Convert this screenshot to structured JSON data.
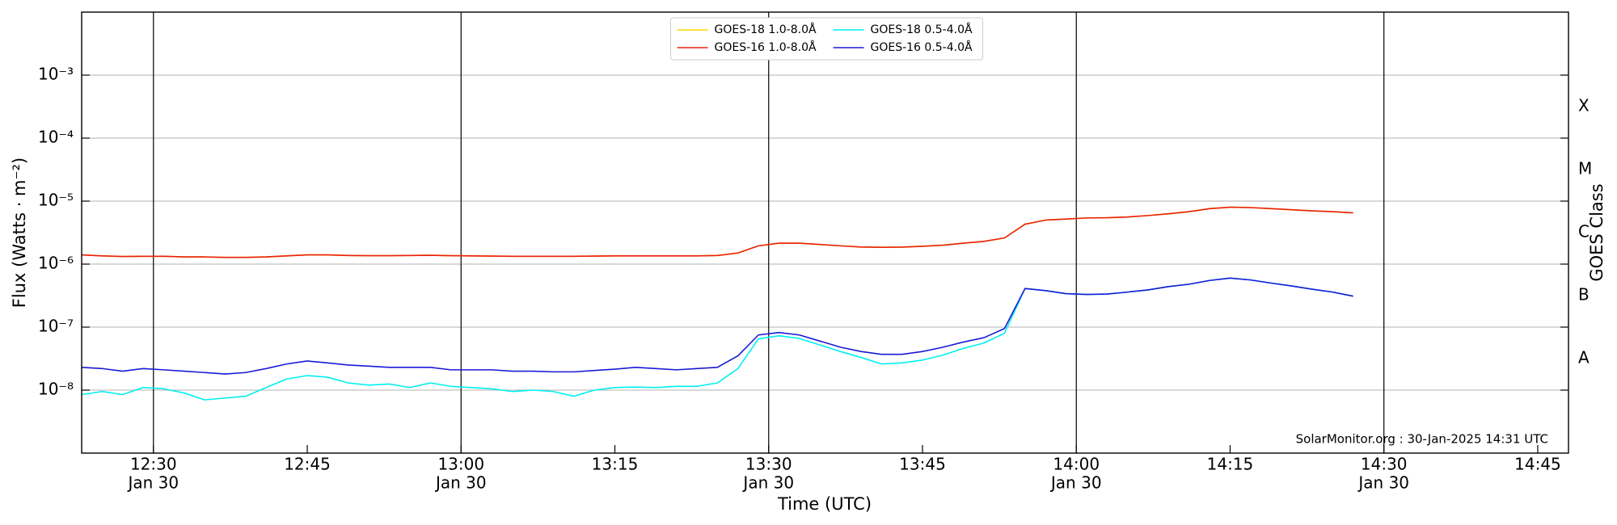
{
  "chart_data": {
    "type": "line",
    "y_scale": "log",
    "xlabel": "Time (UTC)",
    "ylabel": "Flux (Watts · m⁻²)",
    "y2label": "GOES Class",
    "annotation": "SolarMonitor.org : 30-Jan-2025 14:31 UTC",
    "legend": "upper center",
    "grid": true,
    "xlim": [
      "12:23",
      "14:48"
    ],
    "xticks": [
      {
        "value": "12:30",
        "label": [
          "12:30",
          "Jan 30"
        ]
      },
      "12:45",
      {
        "value": "13:00",
        "label": [
          "13:00",
          "Jan 30"
        ]
      },
      "13:15",
      {
        "value": "13:30",
        "label": [
          "13:30",
          "Jan 30"
        ]
      },
      "13:45",
      {
        "value": "14:00",
        "label": [
          "14:00",
          "Jan 30"
        ]
      },
      "14:15",
      {
        "value": "14:30",
        "label": [
          "14:30",
          "Jan 30"
        ]
      },
      "14:45"
    ],
    "ylim": [
      1e-09,
      0.01
    ],
    "yticks": [
      {
        "value": 1e-08,
        "label": "10⁻⁸"
      },
      {
        "value": 1e-07,
        "label": "10⁻⁷"
      },
      {
        "value": 1e-06,
        "label": "10⁻⁶"
      },
      {
        "value": 1e-05,
        "label": "10⁻⁵"
      },
      {
        "value": 0.0001,
        "label": "10⁻⁴"
      },
      {
        "value": 0.001,
        "label": "10⁻³"
      }
    ],
    "y2lim": [
      1e-09,
      0.01
    ],
    "y2ticks": [
      {
        "value": 3.16e-08,
        "label": "A"
      },
      {
        "value": 3.16e-07,
        "label": "B"
      },
      {
        "value": 3.16e-06,
        "label": "C"
      },
      {
        "value": 3.16e-05,
        "label": "M"
      },
      {
        "value": 0.000316,
        "label": "X"
      }
    ],
    "x": [
      "12:23",
      "12:25",
      "12:27",
      "12:29",
      "12:31",
      "12:33",
      "12:35",
      "12:37",
      "12:39",
      "12:41",
      "12:43",
      "12:45",
      "12:47",
      "12:49",
      "12:51",
      "12:53",
      "12:55",
      "12:57",
      "12:59",
      "13:01",
      "13:03",
      "13:05",
      "13:07",
      "13:09",
      "13:11",
      "13:13",
      "13:15",
      "13:17",
      "13:19",
      "13:21",
      "13:23",
      "13:25",
      "13:27",
      "13:29",
      "13:31",
      "13:33",
      "13:35",
      "13:37",
      "13:39",
      "13:41",
      "13:43",
      "13:45",
      "13:47",
      "13:49",
      "13:51",
      "13:53",
      "13:55",
      "13:57",
      "13:59",
      "14:01",
      "14:03",
      "14:05",
      "14:07",
      "14:09",
      "14:11",
      "14:13",
      "14:15",
      "14:17",
      "14:19",
      "14:21",
      "14:23",
      "14:25",
      "14:27"
    ],
    "series": [
      {
        "name": "GOES-18 1.0-8.0Å",
        "color": "#ffd700",
        "values": [
          1.4e-06,
          1.35e-06,
          1.32e-06,
          1.33e-06,
          1.33e-06,
          1.3e-06,
          1.3e-06,
          1.28e-06,
          1.28e-06,
          1.3e-06,
          1.35e-06,
          1.4e-06,
          1.4e-06,
          1.37e-06,
          1.36e-06,
          1.36e-06,
          1.37e-06,
          1.38e-06,
          1.36e-06,
          1.35e-06,
          1.34e-06,
          1.33e-06,
          1.33e-06,
          1.33e-06,
          1.33e-06,
          1.34e-06,
          1.35e-06,
          1.35e-06,
          1.35e-06,
          1.35e-06,
          1.35e-06,
          1.37e-06,
          1.5e-06,
          1.95e-06,
          2.15e-06,
          2.15e-06,
          2.05e-06,
          1.95e-06,
          1.87e-06,
          1.85e-06,
          1.86e-06,
          1.92e-06,
          2e-06,
          2.15e-06,
          2.3e-06,
          2.6e-06,
          4.3e-06,
          5e-06,
          5.2e-06,
          5.4e-06,
          5.45e-06,
          5.6e-06,
          5.9e-06,
          6.3e-06,
          6.8e-06,
          7.6e-06,
          8e-06,
          7.9e-06,
          7.6e-06,
          7.3e-06,
          7e-06,
          6.8e-06,
          6.5e-06
        ]
      },
      {
        "name": "GOES-16 1.0-8.0Å",
        "color": "#e8200c",
        "values": [
          1.4e-06,
          1.35e-06,
          1.32e-06,
          1.33e-06,
          1.33e-06,
          1.3e-06,
          1.3e-06,
          1.28e-06,
          1.28e-06,
          1.3e-06,
          1.35e-06,
          1.4e-06,
          1.4e-06,
          1.37e-06,
          1.36e-06,
          1.36e-06,
          1.37e-06,
          1.38e-06,
          1.36e-06,
          1.35e-06,
          1.34e-06,
          1.33e-06,
          1.33e-06,
          1.33e-06,
          1.33e-06,
          1.34e-06,
          1.35e-06,
          1.35e-06,
          1.35e-06,
          1.35e-06,
          1.35e-06,
          1.37e-06,
          1.5e-06,
          1.95e-06,
          2.15e-06,
          2.15e-06,
          2.05e-06,
          1.95e-06,
          1.87e-06,
          1.85e-06,
          1.86e-06,
          1.92e-06,
          2e-06,
          2.15e-06,
          2.3e-06,
          2.6e-06,
          4.3e-06,
          5e-06,
          5.2e-06,
          5.4e-06,
          5.45e-06,
          5.6e-06,
          5.9e-06,
          6.3e-06,
          6.8e-06,
          7.6e-06,
          8e-06,
          7.9e-06,
          7.6e-06,
          7.3e-06,
          7e-06,
          6.8e-06,
          6.5e-06
        ]
      },
      {
        "name": "GOES-18 0.5-4.0Å",
        "color": "#00f0f0",
        "values": [
          8.5e-09,
          9.5e-09,
          8.5e-09,
          1.1e-08,
          1.05e-08,
          9e-09,
          7e-09,
          7.5e-09,
          8e-09,
          1.1e-08,
          1.5e-08,
          1.7e-08,
          1.6e-08,
          1.3e-08,
          1.2e-08,
          1.25e-08,
          1.1e-08,
          1.3e-08,
          1.15e-08,
          1.1e-08,
          1.05e-08,
          9.5e-09,
          1e-08,
          9.5e-09,
          8e-09,
          1e-08,
          1.1e-08,
          1.12e-08,
          1.1e-08,
          1.15e-08,
          1.15e-08,
          1.3e-08,
          2.2e-08,
          6.5e-08,
          7.3e-08,
          6.6e-08,
          5.2e-08,
          4.1e-08,
          3.3e-08,
          2.6e-08,
          2.7e-08,
          3e-08,
          3.6e-08,
          4.6e-08,
          5.6e-08,
          8e-08,
          4.1e-07,
          3.8e-07,
          3.4e-07,
          3.3e-07,
          3.35e-07,
          3.6e-07,
          3.9e-07,
          4.4e-07,
          4.8e-07,
          5.5e-07,
          6e-07,
          5.6e-07,
          5e-07,
          4.5e-07,
          4e-07,
          3.6e-07,
          3.1e-07
        ]
      },
      {
        "name": "GOES-16 0.5-4.0Å",
        "color": "#1a1ad6",
        "values": [
          2.3e-08,
          2.2e-08,
          2e-08,
          2.2e-08,
          2.1e-08,
          2e-08,
          1.9e-08,
          1.8e-08,
          1.9e-08,
          2.2e-08,
          2.6e-08,
          2.9e-08,
          2.7e-08,
          2.5e-08,
          2.4e-08,
          2.3e-08,
          2.3e-08,
          2.3e-08,
          2.1e-08,
          2.1e-08,
          2.1e-08,
          2e-08,
          2e-08,
          1.95e-08,
          1.95e-08,
          2.05e-08,
          2.15e-08,
          2.3e-08,
          2.2e-08,
          2.1e-08,
          2.2e-08,
          2.3e-08,
          3.5e-08,
          7.5e-08,
          8.2e-08,
          7.5e-08,
          6e-08,
          4.8e-08,
          4.1e-08,
          3.7e-08,
          3.7e-08,
          4.1e-08,
          4.8e-08,
          5.8e-08,
          6.8e-08,
          9.5e-08,
          4.1e-07,
          3.8e-07,
          3.4e-07,
          3.3e-07,
          3.35e-07,
          3.6e-07,
          3.9e-07,
          4.4e-07,
          4.8e-07,
          5.5e-07,
          6e-07,
          5.6e-07,
          5e-07,
          4.5e-07,
          4e-07,
          3.6e-07,
          3.1e-07
        ]
      }
    ]
  }
}
